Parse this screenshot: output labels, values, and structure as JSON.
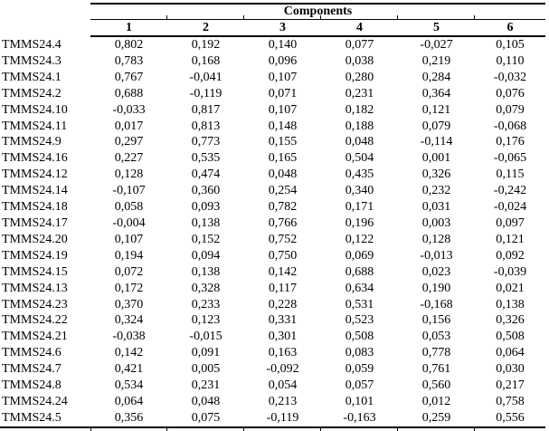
{
  "table": {
    "header": {
      "group_title": "Components",
      "columns": [
        "1",
        "2",
        "3",
        "4",
        "5",
        "6"
      ]
    },
    "rows": [
      {
        "label": "TMMS24.4",
        "values": [
          "0,802",
          "0,192",
          "0,140",
          "0,077",
          "-0,027",
          "0,105"
        ]
      },
      {
        "label": "TMMS24.3",
        "values": [
          "0,783",
          "0,168",
          "0,096",
          "0,038",
          "0,219",
          "0,110"
        ]
      },
      {
        "label": "TMMS24.1",
        "values": [
          "0,767",
          "-0,041",
          "0,107",
          "0,280",
          "0,284",
          "-0,032"
        ]
      },
      {
        "label": "TMMS24.2",
        "values": [
          "0,688",
          "-0,119",
          "0,071",
          "0,231",
          "0,364",
          "0,076"
        ]
      },
      {
        "label": "TMMS24.10",
        "values": [
          "-0,033",
          "0,817",
          "0,107",
          "0,182",
          "0,121",
          "0,079"
        ]
      },
      {
        "label": "TMMS24.11",
        "values": [
          "0,017",
          "0,813",
          "0,148",
          "0,188",
          "0,079",
          "-0,068"
        ]
      },
      {
        "label": "TMMS24.9",
        "values": [
          "0,297",
          "0,773",
          "0,155",
          "0,048",
          "-0,114",
          "0,176"
        ]
      },
      {
        "label": "TMMS24.16",
        "values": [
          "0,227",
          "0,535",
          "0,165",
          "0,504",
          "0,001",
          "-0,065"
        ]
      },
      {
        "label": "TMMS24.12",
        "values": [
          "0,128",
          "0,474",
          "0,048",
          "0,435",
          "0,326",
          "0,115"
        ]
      },
      {
        "label": "TMMS24.14",
        "values": [
          "-0,107",
          "0,360",
          "0,254",
          "0,340",
          "0,232",
          "-0,242"
        ]
      },
      {
        "label": "TMMS24.18",
        "values": [
          "0,058",
          "0,093",
          "0,782",
          "0,171",
          "0,031",
          "-0,024"
        ]
      },
      {
        "label": "TMMS24.17",
        "values": [
          "-0,004",
          "0,138",
          "0,766",
          "0,196",
          "0,003",
          "0,097"
        ]
      },
      {
        "label": "TMMS24.20",
        "values": [
          "0,107",
          "0,152",
          "0,752",
          "0,122",
          "0,128",
          "0,121"
        ]
      },
      {
        "label": "TMMS24.19",
        "values": [
          "0,194",
          "0,094",
          "0,750",
          "0,069",
          "-0,013",
          "0,092"
        ]
      },
      {
        "label": "TMMS24.15",
        "values": [
          "0,072",
          "0,138",
          "0,142",
          "0,688",
          "0,023",
          "-0,039"
        ]
      },
      {
        "label": "TMMS24.13",
        "values": [
          "0,172",
          "0,328",
          "0,117",
          "0,634",
          "0,190",
          "0,021"
        ]
      },
      {
        "label": "TMMS24.23",
        "values": [
          "0,370",
          "0,233",
          "0,228",
          "0,531",
          "-0,168",
          "0,138"
        ]
      },
      {
        "label": "TMMS24.22",
        "values": [
          "0,324",
          "0,123",
          "0,331",
          "0,523",
          "0,156",
          "0,326"
        ]
      },
      {
        "label": "TMMS24.21",
        "values": [
          "-0,038",
          "-0,015",
          "0,301",
          "0,508",
          "0,053",
          "0,508"
        ]
      },
      {
        "label": "TMMS24.6",
        "values": [
          "0,142",
          "0,091",
          "0,163",
          "0,083",
          "0,778",
          "0,064"
        ]
      },
      {
        "label": "TMMS24.7",
        "values": [
          "0,421",
          "0,005",
          "-0,092",
          "0,059",
          "0,761",
          "0,030"
        ]
      },
      {
        "label": "TMMS24.8",
        "values": [
          "0,534",
          "0,231",
          "0,054",
          "0,057",
          "0,560",
          "0,217"
        ]
      },
      {
        "label": "TMMS24.24",
        "values": [
          "0,064",
          "0,048",
          "0,213",
          "0,101",
          "0,012",
          "0,758"
        ]
      },
      {
        "label": "TMMS24.5",
        "values": [
          "0,356",
          "0,075",
          "-0,119",
          "-0,163",
          "0,259",
          "0,556"
        ]
      }
    ]
  },
  "style": {
    "rule_color": "#000000",
    "text_color": "#000000",
    "background_color": "#ffffff"
  }
}
